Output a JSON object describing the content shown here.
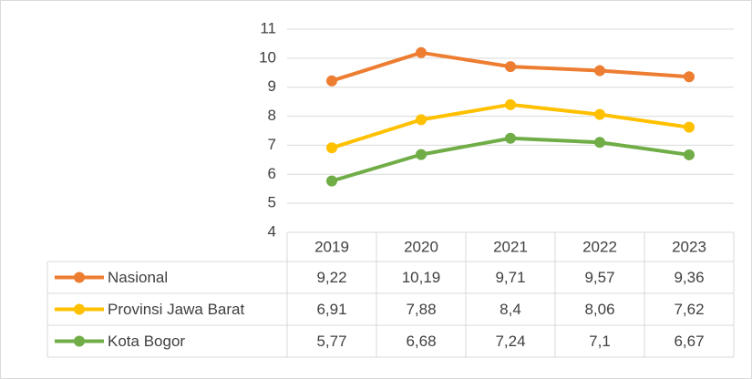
{
  "chart_data": {
    "type": "line",
    "categories": [
      "2019",
      "2020",
      "2021",
      "2022",
      "2023"
    ],
    "series": [
      {
        "name": "Nasional",
        "color": "#ED7D31",
        "values": [
          9.22,
          10.19,
          9.71,
          9.57,
          9.36
        ],
        "value_labels": [
          "9,22",
          "10,19",
          "9,71",
          "9,57",
          "9,36"
        ]
      },
      {
        "name": "Provinsi Jawa Barat",
        "color": "#FFC000",
        "values": [
          6.91,
          7.88,
          8.4,
          8.06,
          7.62
        ],
        "value_labels": [
          "6,91",
          "7,88",
          "8,4",
          "8,06",
          "7,62"
        ]
      },
      {
        "name": "Kota Bogor",
        "color": "#70AD47",
        "values": [
          5.77,
          6.68,
          7.24,
          7.1,
          6.67
        ],
        "value_labels": [
          "5,77",
          "6,68",
          "7,24",
          "7,1",
          "6,67"
        ]
      }
    ],
    "ylim": [
      4,
      11
    ],
    "yticks": [
      4,
      5,
      6,
      7,
      8,
      9,
      10,
      11
    ],
    "grid": true
  }
}
